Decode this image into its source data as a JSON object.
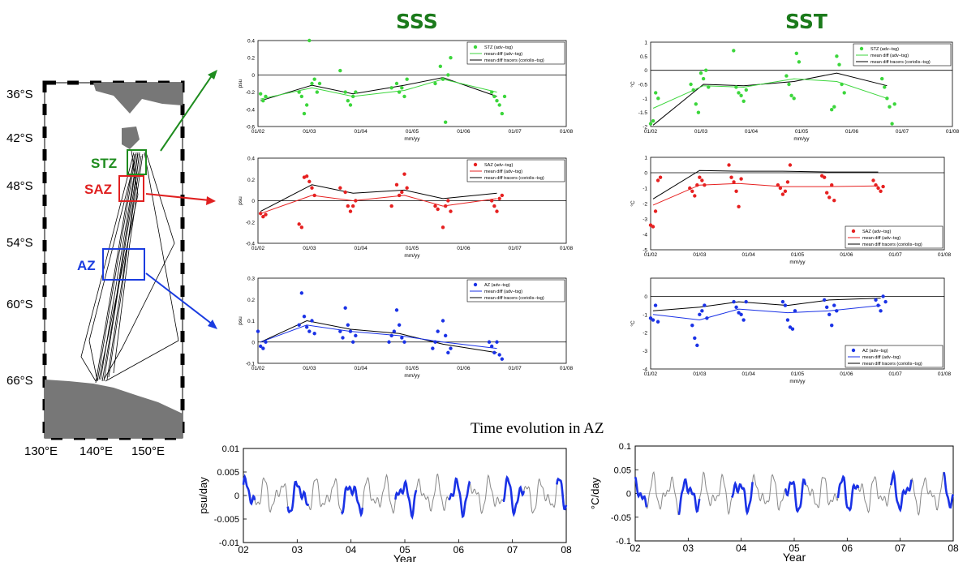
{
  "headers": {
    "sss": "SSS",
    "sst": "SST",
    "bottom": "Time evolution in AZ"
  },
  "map": {
    "lat_labels": [
      "36°S",
      "42°S",
      "48°S",
      "54°S",
      "60°S",
      "66°S"
    ],
    "lon_labels": [
      "130°E",
      "140°E",
      "150°E"
    ],
    "zones": [
      {
        "label": "STZ",
        "color": "#1e8c1e"
      },
      {
        "label": "SAZ",
        "color": "#e02020"
      },
      {
        "label": "AZ",
        "color": "#1a3ce0"
      }
    ]
  },
  "colors": {
    "stz": "#3cd63c",
    "saz": "#e62020",
    "az": "#1a32e6",
    "gray": "#888888"
  },
  "chart_data": [
    {
      "id": "sss_stz",
      "type": "scatter",
      "xlabel": "mm/yy",
      "ylabel": "psu",
      "xticks": [
        "01/02",
        "01/03",
        "01/04",
        "01/05",
        "01/06",
        "01/07",
        "01/08"
      ],
      "yticks": [
        "0.4",
        "0.2",
        "0",
        "-0.2",
        "-0.4",
        "-0.6"
      ],
      "ylim": [
        -0.6,
        0.4
      ],
      "legend": [
        "STZ (adv−tsg)",
        "mean diff (adv−tsg)",
        "mean diff tracers (coriolis−tsg)"
      ],
      "points": [
        [
          0.05,
          -0.22
        ],
        [
          0.1,
          -0.3
        ],
        [
          0.15,
          -0.25
        ],
        [
          0.8,
          -0.2
        ],
        [
          0.85,
          -0.25
        ],
        [
          0.9,
          -0.45
        ],
        [
          0.95,
          -0.35
        ],
        [
          1.0,
          0.4
        ],
        [
          1.05,
          -0.1
        ],
        [
          1.1,
          -0.05
        ],
        [
          1.15,
          -0.2
        ],
        [
          1.2,
          -0.1
        ],
        [
          1.7,
          -0.2
        ],
        [
          1.75,
          -0.3
        ],
        [
          1.8,
          -0.35
        ],
        [
          1.85,
          -0.25
        ],
        [
          1.9,
          -0.2
        ],
        [
          1.6,
          0.05
        ],
        [
          2.7,
          -0.1
        ],
        [
          2.75,
          -0.2
        ],
        [
          2.8,
          -0.15
        ],
        [
          2.85,
          -0.25
        ],
        [
          2.9,
          -0.05
        ],
        [
          2.6,
          -0.15
        ],
        [
          3.55,
          0.1
        ],
        [
          3.6,
          -0.05
        ],
        [
          3.65,
          -0.55
        ],
        [
          3.7,
          0.0
        ],
        [
          3.75,
          0.2
        ],
        [
          3.45,
          -0.1
        ],
        [
          4.55,
          -0.2
        ],
        [
          4.6,
          -0.25
        ],
        [
          4.65,
          -0.3
        ],
        [
          4.7,
          -0.35
        ],
        [
          4.75,
          -0.45
        ],
        [
          4.8,
          -0.25
        ]
      ],
      "mean": [
        [
          0.05,
          -0.28
        ],
        [
          1.05,
          -0.15
        ],
        [
          1.85,
          -0.25
        ],
        [
          2.85,
          -0.18
        ],
        [
          3.6,
          -0.05
        ],
        [
          4.65,
          -0.2
        ]
      ],
      "tracers": [
        [
          0.05,
          -0.3
        ],
        [
          1.05,
          -0.12
        ],
        [
          1.85,
          -0.22
        ],
        [
          2.85,
          -0.12
        ],
        [
          3.6,
          -0.03
        ],
        [
          4.65,
          -0.25
        ]
      ]
    },
    {
      "id": "sss_saz",
      "type": "scatter",
      "xlabel": "mm/yy",
      "ylabel": "psu",
      "xticks": [
        "01/02",
        "01/03",
        "01/04",
        "01/05",
        "01/06",
        "01/07",
        "01/08"
      ],
      "yticks": [
        "0.4",
        "0.2",
        "0",
        "-0.2",
        "-0.4"
      ],
      "ylim": [
        -0.4,
        0.4
      ],
      "legend": [
        "SAZ (adv−tsg)",
        "mean diff (adv−tsg)",
        "mean diff tracers (coriolis−tsg)"
      ],
      "points": [
        [
          0.05,
          -0.12
        ],
        [
          0.1,
          -0.15
        ],
        [
          0.15,
          -0.13
        ],
        [
          0.8,
          -0.22
        ],
        [
          0.85,
          -0.25
        ],
        [
          0.9,
          0.22
        ],
        [
          0.95,
          0.23
        ],
        [
          1.0,
          0.18
        ],
        [
          1.05,
          0.12
        ],
        [
          1.1,
          0.05
        ],
        [
          1.7,
          0.08
        ],
        [
          1.75,
          -0.05
        ],
        [
          1.8,
          -0.1
        ],
        [
          1.85,
          -0.05
        ],
        [
          1.9,
          0.0
        ],
        [
          1.6,
          0.12
        ],
        [
          2.6,
          -0.05
        ],
        [
          2.7,
          0.15
        ],
        [
          2.75,
          0.05
        ],
        [
          2.8,
          0.08
        ],
        [
          2.85,
          0.25
        ],
        [
          2.9,
          0.12
        ],
        [
          3.45,
          -0.05
        ],
        [
          3.5,
          -0.08
        ],
        [
          3.6,
          -0.25
        ],
        [
          3.65,
          -0.05
        ],
        [
          3.7,
          0.0
        ],
        [
          3.75,
          -0.1
        ],
        [
          4.55,
          0.0
        ],
        [
          4.6,
          -0.05
        ],
        [
          4.65,
          -0.1
        ],
        [
          4.7,
          0.02
        ],
        [
          4.75,
          0.05
        ]
      ],
      "mean": [
        [
          0.05,
          -0.12
        ],
        [
          1.05,
          0.05
        ],
        [
          1.85,
          0.0
        ],
        [
          2.85,
          0.05
        ],
        [
          3.6,
          -0.05
        ],
        [
          4.65,
          0.02
        ]
      ],
      "tracers": [
        [
          0.05,
          -0.1
        ],
        [
          1.05,
          0.15
        ],
        [
          1.85,
          0.07
        ],
        [
          2.85,
          0.1
        ],
        [
          3.6,
          0.02
        ],
        [
          4.65,
          0.07
        ]
      ]
    },
    {
      "id": "sss_az",
      "type": "scatter",
      "xlabel": "mm/yy",
      "ylabel": "psu",
      "xticks": [
        "01/02",
        "01/03",
        "01/04",
        "01/05",
        "01/06",
        "01/07",
        "01/08"
      ],
      "yticks": [
        "0.3",
        "0.2",
        "0.1",
        "0",
        "-0.1"
      ],
      "ylim": [
        -0.1,
        0.3
      ],
      "legend": [
        "AZ (adv−tsg)",
        "mean diff (adv−tsg)",
        "mean diff tracers (coriolis−tsg)"
      ],
      "points": [
        [
          0.05,
          -0.02
        ],
        [
          0.1,
          -0.03
        ],
        [
          0.15,
          0.0
        ],
        [
          0.0,
          0.05
        ],
        [
          0.8,
          0.08
        ],
        [
          0.85,
          0.23
        ],
        [
          0.9,
          0.12
        ],
        [
          0.95,
          0.07
        ],
        [
          1.0,
          0.05
        ],
        [
          1.05,
          0.1
        ],
        [
          1.1,
          0.04
        ],
        [
          1.6,
          0.05
        ],
        [
          1.65,
          0.02
        ],
        [
          1.7,
          0.16
        ],
        [
          1.75,
          0.08
        ],
        [
          1.8,
          0.05
        ],
        [
          1.85,
          0.0
        ],
        [
          1.9,
          0.03
        ],
        [
          2.55,
          0.0
        ],
        [
          2.6,
          0.03
        ],
        [
          2.65,
          0.05
        ],
        [
          2.7,
          0.15
        ],
        [
          2.75,
          0.08
        ],
        [
          2.8,
          0.02
        ],
        [
          2.85,
          0.0
        ],
        [
          3.4,
          -0.03
        ],
        [
          3.45,
          0.0
        ],
        [
          3.5,
          0.05
        ],
        [
          3.6,
          0.1
        ],
        [
          3.65,
          0.03
        ],
        [
          3.7,
          -0.05
        ],
        [
          3.75,
          -0.03
        ],
        [
          4.5,
          0.0
        ],
        [
          4.55,
          -0.02
        ],
        [
          4.6,
          -0.05
        ],
        [
          4.65,
          0.0
        ],
        [
          4.7,
          -0.06
        ],
        [
          4.75,
          -0.08
        ]
      ],
      "mean": [
        [
          0.05,
          0.0
        ],
        [
          0.95,
          0.08
        ],
        [
          1.8,
          0.05
        ],
        [
          2.75,
          0.03
        ],
        [
          3.6,
          0.0
        ],
        [
          4.65,
          -0.03
        ]
      ],
      "tracers": [
        [
          0.05,
          0.0
        ],
        [
          0.95,
          0.1
        ],
        [
          1.8,
          0.06
        ],
        [
          2.75,
          0.04
        ],
        [
          3.6,
          -0.01
        ],
        [
          4.65,
          -0.05
        ]
      ]
    },
    {
      "id": "sst_stz",
      "type": "scatter",
      "xlabel": "mm/yy",
      "ylabel": "°C",
      "xticks": [
        "01/02",
        "01/03",
        "01/04",
        "01/05",
        "01/06",
        "01/07",
        "01/08"
      ],
      "yticks": [
        "1",
        "0.5",
        "0",
        "-0.5",
        "-1",
        "-1.5",
        "-2"
      ],
      "ylim": [
        -2,
        1
      ],
      "legend": [
        "STZ (adv−tsg)",
        "mean diff (adv−tsg)",
        "mean diff tracers (coriolis−tsg)"
      ],
      "points": [
        [
          0.0,
          -1.9
        ],
        [
          0.05,
          -1.8
        ],
        [
          0.1,
          -0.8
        ],
        [
          0.15,
          -1.0
        ],
        [
          0.8,
          -0.5
        ],
        [
          0.85,
          -0.7
        ],
        [
          0.9,
          -1.2
        ],
        [
          0.95,
          -1.5
        ],
        [
          1.0,
          -0.1
        ],
        [
          1.05,
          -0.3
        ],
        [
          1.1,
          0.0
        ],
        [
          1.15,
          -0.6
        ],
        [
          1.65,
          0.7
        ],
        [
          1.7,
          -0.6
        ],
        [
          1.75,
          -0.8
        ],
        [
          1.8,
          -0.9
        ],
        [
          1.85,
          -1.1
        ],
        [
          1.9,
          -0.7
        ],
        [
          2.7,
          -0.2
        ],
        [
          2.75,
          -0.5
        ],
        [
          2.8,
          -0.9
        ],
        [
          2.85,
          -1.0
        ],
        [
          2.9,
          0.6
        ],
        [
          2.95,
          0.3
        ],
        [
          3.6,
          -1.4
        ],
        [
          3.65,
          -1.3
        ],
        [
          3.7,
          0.5
        ],
        [
          3.75,
          0.2
        ],
        [
          3.8,
          -0.5
        ],
        [
          3.85,
          -0.8
        ],
        [
          4.6,
          -0.3
        ],
        [
          4.65,
          -0.6
        ],
        [
          4.7,
          -1.0
        ],
        [
          4.75,
          -1.3
        ],
        [
          4.8,
          -1.9
        ],
        [
          4.85,
          -1.2
        ]
      ],
      "mean": [
        [
          0.05,
          -1.35
        ],
        [
          1.05,
          -0.55
        ],
        [
          1.85,
          -0.6
        ],
        [
          2.85,
          -0.3
        ],
        [
          3.7,
          -0.4
        ],
        [
          4.7,
          -1.0
        ]
      ],
      "tracers": [
        [
          0.05,
          -1.95
        ],
        [
          1.05,
          -0.5
        ],
        [
          1.85,
          -0.55
        ],
        [
          2.85,
          -0.4
        ],
        [
          3.7,
          -0.1
        ],
        [
          4.7,
          -0.55
        ]
      ]
    },
    {
      "id": "sst_saz",
      "type": "scatter",
      "xlabel": "mm/yy",
      "ylabel": "°C",
      "xticks": [
        "01/02",
        "01/03",
        "01/04",
        "01/05",
        "01/06",
        "01/07",
        "01/08"
      ],
      "yticks": [
        "1",
        "0",
        "-1",
        "-2",
        "-3",
        "-4",
        "-5"
      ],
      "ylim": [
        -5,
        1
      ],
      "legend": [
        "SAZ (adv−tsg)",
        "mean diff (adv−tsg)",
        "mean diff tracers (coriolis−tsg)"
      ],
      "points": [
        [
          0.0,
          -3.4
        ],
        [
          0.05,
          -3.5
        ],
        [
          0.1,
          -2.5
        ],
        [
          0.15,
          -0.5
        ],
        [
          0.2,
          -0.3
        ],
        [
          0.8,
          -1.0
        ],
        [
          0.85,
          -1.2
        ],
        [
          0.9,
          -1.5
        ],
        [
          0.95,
          -0.8
        ],
        [
          1.0,
          -0.3
        ],
        [
          1.05,
          -0.5
        ],
        [
          1.1,
          -0.8
        ],
        [
          1.6,
          0.5
        ],
        [
          1.65,
          -0.3
        ],
        [
          1.7,
          -0.6
        ],
        [
          1.75,
          -1.2
        ],
        [
          1.8,
          -2.2
        ],
        [
          1.85,
          -0.4
        ],
        [
          2.6,
          -0.8
        ],
        [
          2.65,
          -1.0
        ],
        [
          2.7,
          -1.4
        ],
        [
          2.75,
          -1.2
        ],
        [
          2.8,
          -0.6
        ],
        [
          2.85,
          0.5
        ],
        [
          3.5,
          -0.2
        ],
        [
          3.55,
          -0.3
        ],
        [
          3.6,
          -1.3
        ],
        [
          3.65,
          -1.6
        ],
        [
          3.7,
          -0.8
        ],
        [
          3.75,
          -1.8
        ],
        [
          4.55,
          -0.5
        ],
        [
          4.6,
          -0.8
        ],
        [
          4.65,
          -1.0
        ],
        [
          4.7,
          -1.2
        ],
        [
          4.75,
          -0.9
        ]
      ],
      "mean": [
        [
          0.05,
          -2.1
        ],
        [
          1.0,
          -0.8
        ],
        [
          1.8,
          -0.7
        ],
        [
          2.7,
          -0.9
        ],
        [
          3.6,
          -0.9
        ],
        [
          4.65,
          -0.85
        ]
      ],
      "tracers": [
        [
          0.05,
          -1.7
        ],
        [
          1.0,
          0.15
        ],
        [
          1.8,
          0.1
        ],
        [
          2.7,
          0.1
        ],
        [
          3.6,
          0.05
        ],
        [
          4.65,
          0.05
        ]
      ]
    },
    {
      "id": "sst_az",
      "type": "scatter",
      "xlabel": "mm/yy",
      "ylabel": "°C",
      "xticks": [
        "01/02",
        "01/03",
        "01/04",
        "01/05",
        "01/06",
        "01/07",
        "01/08"
      ],
      "yticks": [
        "0",
        "-1",
        "-2",
        "-3",
        "-4"
      ],
      "ylim": [
        -4,
        1
      ],
      "legend": [
        "AZ (adv−tsg)",
        "mean diff (adv−tsg)",
        "mean diff tracers (coriolis−tsg)"
      ],
      "points": [
        [
          0.0,
          -1.2
        ],
        [
          0.05,
          -1.3
        ],
        [
          0.1,
          -0.5
        ],
        [
          0.15,
          -1.4
        ],
        [
          0.85,
          -1.6
        ],
        [
          0.9,
          -2.3
        ],
        [
          0.95,
          -2.7
        ],
        [
          1.0,
          -1.0
        ],
        [
          1.05,
          -0.8
        ],
        [
          1.1,
          -0.5
        ],
        [
          1.15,
          -1.2
        ],
        [
          1.7,
          -0.3
        ],
        [
          1.75,
          -0.6
        ],
        [
          1.8,
          -0.9
        ],
        [
          1.85,
          -1.0
        ],
        [
          1.9,
          -1.3
        ],
        [
          1.95,
          -0.3
        ],
        [
          2.7,
          -0.3
        ],
        [
          2.75,
          -0.5
        ],
        [
          2.8,
          -1.3
        ],
        [
          2.85,
          -1.7
        ],
        [
          2.9,
          -1.8
        ],
        [
          2.95,
          -0.8
        ],
        [
          3.55,
          -0.2
        ],
        [
          3.6,
          -0.6
        ],
        [
          3.65,
          -1.0
        ],
        [
          3.7,
          -1.6
        ],
        [
          3.75,
          -0.5
        ],
        [
          3.8,
          -0.8
        ],
        [
          4.6,
          -0.2
        ],
        [
          4.65,
          -0.5
        ],
        [
          4.7,
          -0.8
        ],
        [
          4.75,
          0.0
        ],
        [
          4.8,
          -0.3
        ]
      ],
      "mean": [
        [
          0.05,
          -1.0
        ],
        [
          1.0,
          -1.3
        ],
        [
          1.8,
          -0.7
        ],
        [
          2.8,
          -0.9
        ],
        [
          3.65,
          -0.8
        ],
        [
          4.7,
          -0.5
        ]
      ],
      "tracers": [
        [
          0.05,
          -0.8
        ],
        [
          1.0,
          -0.6
        ],
        [
          1.8,
          -0.3
        ],
        [
          2.8,
          -0.5
        ],
        [
          3.65,
          -0.2
        ],
        [
          4.7,
          -0.1
        ]
      ]
    },
    {
      "id": "ts_sss",
      "type": "line",
      "xlabel": "Year",
      "ylabel": "psu/day",
      "xticks": [
        "02",
        "03",
        "04",
        "05",
        "06",
        "07",
        "08"
      ],
      "yticks": [
        "0.01",
        "0.005",
        "0",
        "-0.005",
        "-0.01"
      ],
      "ylim": [
        -0.01,
        0.01
      ]
    },
    {
      "id": "ts_sst",
      "type": "line",
      "xlabel": "Year",
      "ylabel": "°C/day",
      "xticks": [
        "02",
        "03",
        "04",
        "05",
        "06",
        "07",
        "08"
      ],
      "yticks": [
        "0.1",
        "0.05",
        "0",
        "-0.05",
        "-0.1"
      ],
      "ylim": [
        -0.1,
        0.1
      ]
    }
  ]
}
